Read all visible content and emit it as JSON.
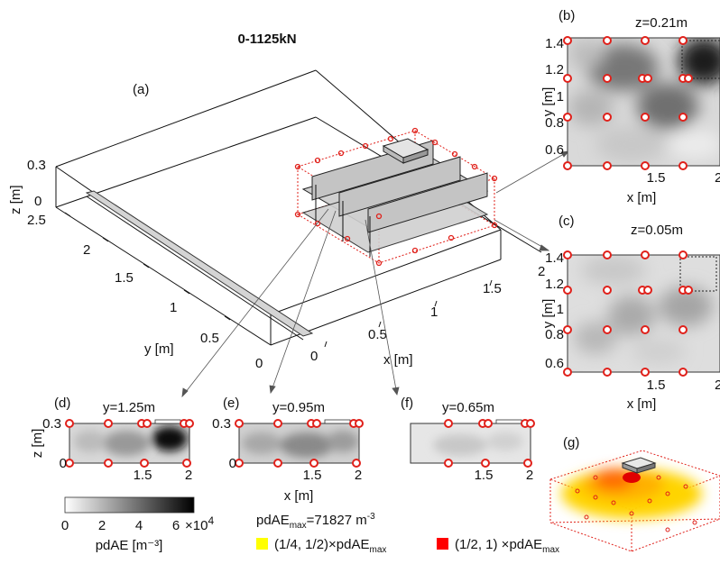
{
  "figure_title": "0-1125kN",
  "chart_data": [
    {
      "type": "3d-schematic",
      "panel": "(a)",
      "axis_labels": {
        "x": "x [m]",
        "y": "y [m]",
        "z": "z [m]"
      },
      "x_ticks": [
        "0",
        "0.5",
        "1",
        "1.5",
        "2"
      ],
      "y_ticks": [
        "0",
        "0.5",
        "1",
        "1.5",
        "2",
        "2.5"
      ],
      "z_ticks": [
        "0",
        "0.3"
      ]
    },
    {
      "type": "heatmap",
      "panel": "(b)",
      "title": "z=0.21m",
      "xlabel": "x [m]",
      "ylabel": "y [m]",
      "x_ticks": [
        "1.5",
        "2"
      ],
      "y_ticks": [
        "0.6",
        "0.8",
        "1",
        "1.2",
        "1.4"
      ],
      "xlim": [
        1.0,
        2.0
      ],
      "ylim": [
        0.5,
        1.45
      ]
    },
    {
      "type": "heatmap",
      "panel": "(c)",
      "title": "z=0.05m",
      "xlabel": "x [m]",
      "ylabel": "y [m]",
      "x_ticks": [
        "1.5",
        "2"
      ],
      "y_ticks": [
        "0.6",
        "0.8",
        "1",
        "1.2",
        "1.4"
      ],
      "xlim": [
        1.0,
        2.0
      ],
      "ylim": [
        0.5,
        1.45
      ]
    },
    {
      "type": "heatmap",
      "panel": "(d)",
      "title": "y=1.25m",
      "ylabel": "z [m]",
      "x_ticks": [
        "1.5",
        "2"
      ],
      "y_ticks": [
        "0",
        "0.3"
      ]
    },
    {
      "type": "heatmap",
      "panel": "(e)",
      "title": "y=0.95m",
      "xlabel": "x [m]",
      "ylabel": "",
      "x_ticks": [
        "1.5",
        "2"
      ],
      "y_ticks": [
        "0",
        "0.3"
      ]
    },
    {
      "type": "heatmap",
      "panel": "(f)",
      "title": "y=0.65m",
      "ylabel": "",
      "x_ticks": [
        "1.5",
        "2"
      ],
      "y_ticks": [
        "0",
        "0.3"
      ]
    },
    {
      "type": "3d-isosurface",
      "panel": "(g)"
    }
  ],
  "colorbar": {
    "label": "pdAE [m⁻³]",
    "ticks": [
      "0",
      "2",
      "4",
      "6"
    ],
    "multiplier": "×10",
    "exponent": "4",
    "range": [
      0,
      70000
    ],
    "colors": [
      "#ffffff",
      "#000000"
    ]
  },
  "pdae_max": {
    "prefix": "pdAE",
    "sub": "max",
    "value": "=71827 m",
    "exponent": "-3"
  },
  "legend": [
    {
      "color": "#ffff00",
      "text": "(1/4, 1/2)×pdAE",
      "sub": "max"
    },
    {
      "color": "#ff0000",
      "text": "(1/2, 1) ×pdAE",
      "sub": "max"
    }
  ]
}
